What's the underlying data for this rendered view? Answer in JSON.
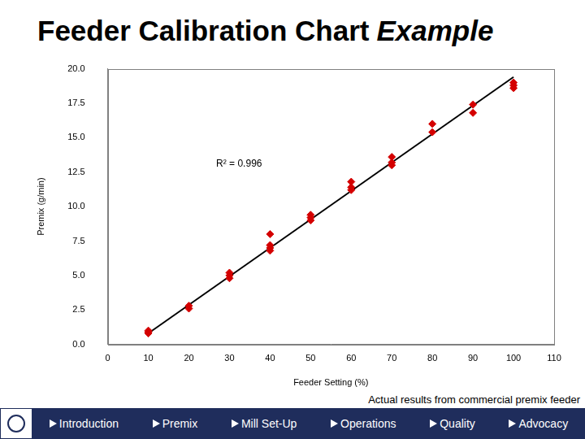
{
  "chart_data": {
    "type": "scatter",
    "x_label": "Feeder Setting (%)",
    "y_label": "Premix (g/min)",
    "annotations": [
      "R² = 0.996"
    ],
    "grid": false,
    "xlim": [
      0,
      110
    ],
    "xticks": [
      0,
      10,
      20,
      30,
      40,
      50,
      60,
      70,
      80,
      90,
      100,
      110
    ],
    "ylim": [
      0,
      20
    ],
    "yticks": [
      {
        "value": 0,
        "label": "0.0"
      },
      {
        "value": 2.5,
        "label": "2.5"
      },
      {
        "value": 5,
        "label": "5.0"
      },
      {
        "value": 7.5,
        "label": "7.5"
      },
      {
        "value": 10,
        "label": "10.0"
      },
      {
        "value": 12.5,
        "label": "12.5"
      },
      {
        "value": 15,
        "label": "15.0"
      },
      {
        "value": 17.5,
        "label": "17.5"
      },
      {
        "value": 20,
        "label": "20.0"
      }
    ],
    "series": [
      {
        "type": "scatter",
        "color": "#d40000",
        "marker": "diamond",
        "x": [
          10,
          10,
          10,
          20,
          20,
          30,
          30,
          30,
          40,
          40,
          40,
          40,
          50,
          50,
          50,
          60,
          60,
          60,
          70,
          70,
          70,
          80,
          80,
          90,
          90,
          100,
          100,
          100
        ],
        "values": [
          0.8,
          0.9,
          1.0,
          2.6,
          2.8,
          4.8,
          5.0,
          5.2,
          8.0,
          7.2,
          7.0,
          6.8,
          9.0,
          9.2,
          9.4,
          11.8,
          11.4,
          11.2,
          13.6,
          13.2,
          13.0,
          16.0,
          15.4,
          17.4,
          16.8,
          19.0,
          18.8,
          18.6
        ]
      },
      {
        "type": "line",
        "color": "#000000",
        "line_style": "solid",
        "x": [
          10,
          100
        ],
        "values": [
          0.8,
          19.4
        ]
      }
    ]
  },
  "slide": {
    "title": "Feeder Calibration Chart",
    "title_italic": "Example",
    "caption": "Actual results from commercial premix feeder",
    "nav": [
      "Introduction",
      "Premix",
      "Mill Set-Up",
      "Operations",
      "Quality",
      "Advocacy"
    ]
  }
}
